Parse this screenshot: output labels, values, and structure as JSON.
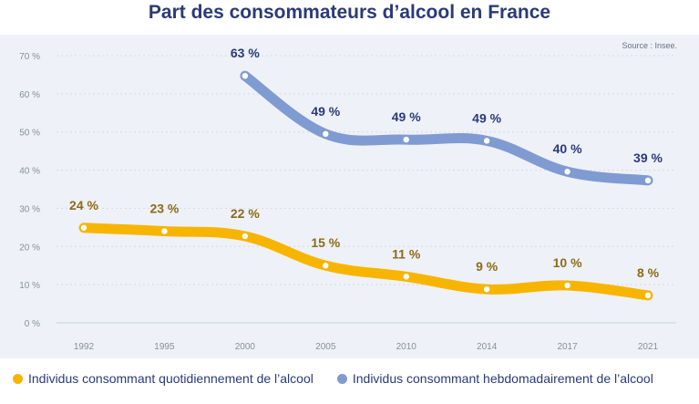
{
  "title": "Part des consommateurs d’alcool en France",
  "source": "Source : Insee.",
  "colors": {
    "daily": "#f7b500",
    "weekly": "#7f9bd1",
    "daily_label": "#8d6a16",
    "weekly_label": "#2b3a78"
  },
  "chart_data": {
    "type": "line",
    "title": "Part des consommateurs d’alcool en France",
    "categories": [
      "1992",
      "1995",
      "2000",
      "2005",
      "2010",
      "2014",
      "2017",
      "2021"
    ],
    "y_ticks": [
      "0 %",
      "10 %",
      "20 %",
      "30 %",
      "40 %",
      "50 %",
      "60 %",
      "70 %"
    ],
    "ylim": [
      0,
      70
    ],
    "grid": true,
    "legend_position": "bottom-left",
    "series": [
      {
        "name": "Individus consommant quotidiennement de l’alcool",
        "key": "daily",
        "values": [
          24,
          23,
          22,
          15,
          11,
          9,
          10,
          8
        ],
        "labels": [
          "24 %",
          "23 %",
          "22 %",
          "15 %",
          "11 %",
          "9 %",
          "10 %",
          "8 %"
        ],
        "y": [
          24.9,
          24.0,
          22.7,
          15.0,
          12.1,
          8.8,
          9.8,
          7.2
        ]
      },
      {
        "name": "Individus consommant hebdomadairement de l’alcool",
        "key": "weekly",
        "values": [
          null,
          null,
          63,
          49,
          49,
          49,
          40,
          39
        ],
        "labels": [
          null,
          null,
          "63 %",
          "49 %",
          "49 %",
          "49 %",
          "40 %",
          "39 %"
        ],
        "y": [
          null,
          null,
          64.7,
          49.5,
          48.0,
          47.7,
          39.6,
          37.3
        ]
      }
    ]
  }
}
